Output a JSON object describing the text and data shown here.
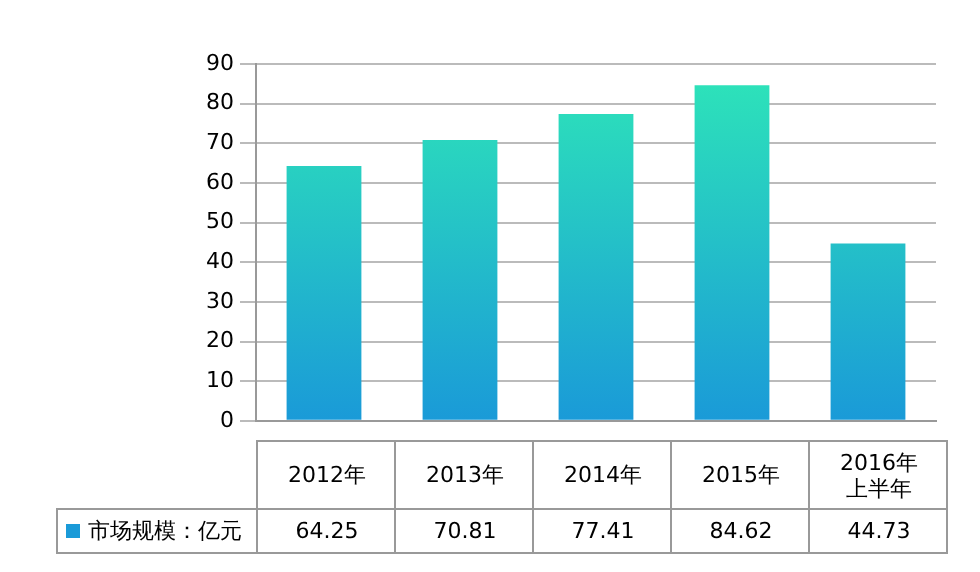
{
  "chart_data": {
    "type": "bar",
    "categories": [
      "2012年",
      "2013年",
      "2014年",
      "2015年",
      "2016年上半年"
    ],
    "series": [
      {
        "name": "市场规模：亿元",
        "color": "#1a9ad8",
        "values": [
          64.25,
          70.81,
          77.41,
          84.62,
          44.73
        ]
      }
    ],
    "ylim": [
      0,
      90
    ],
    "yticks": [
      0,
      10,
      20,
      30,
      40,
      50,
      60,
      70,
      80,
      90
    ],
    "grid": "y",
    "legend": "bottom",
    "data_labels": true
  }
}
